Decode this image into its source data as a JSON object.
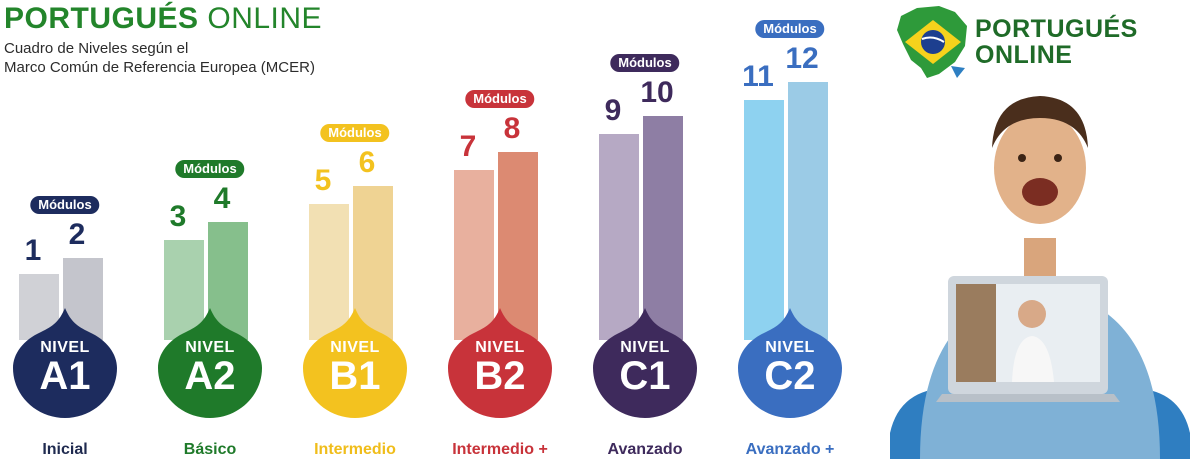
{
  "header": {
    "title_bold": "PORTUGUÉS",
    "title_light": " ONLINE",
    "subtitle_line1": "Cuadro de Niveles según el",
    "subtitle_line2": "Marco Común de Referencia Europea (MCER)"
  },
  "brand": {
    "line1": "PORTUGUÉS",
    "line2": "ONLINE",
    "logo_icon": "brazil-map-flag-icon"
  },
  "levels": [
    {
      "nivel": "NIVEL",
      "code": "A1",
      "label": "Inicial",
      "badge": "Módulos",
      "modules": [
        "1",
        "2"
      ],
      "color": "#1d2c5e",
      "bar_colors": [
        "#d0d1d6",
        "#c4c5cc"
      ],
      "label_color": "#1f2a4f"
    },
    {
      "nivel": "NIVEL",
      "code": "A2",
      "label": "Básico",
      "badge": "Módulos",
      "modules": [
        "3",
        "4"
      ],
      "color": "#1f7a2a",
      "bar_colors": [
        "#a9d1ae",
        "#86bf8c"
      ],
      "label_color": "#1f7a2a"
    },
    {
      "nivel": "NIVEL",
      "code": "B1",
      "label": "Intermedio",
      "badge": "Módulos",
      "modules": [
        "5",
        "6"
      ],
      "color": "#f3c21f",
      "bar_colors": [
        "#f2e0b3",
        "#efd393"
      ],
      "label_color": "#f0bd1a"
    },
    {
      "nivel": "NIVEL",
      "code": "B2",
      "label": "Intermedio +",
      "badge": "Módulos",
      "modules": [
        "7",
        "8"
      ],
      "color": "#c8333a",
      "bar_colors": [
        "#e8b09e",
        "#dc8a72"
      ],
      "label_color": "#c8333a"
    },
    {
      "nivel": "NIVEL",
      "code": "C1",
      "label": "Avanzado",
      "badge": "Módulos",
      "modules": [
        "9",
        "10"
      ],
      "color": "#3e2a5c",
      "bar_colors": [
        "#b6a9c4",
        "#8e7ea4"
      ],
      "label_color": "#3e2a5c"
    },
    {
      "nivel": "NIVEL",
      "code": "C2",
      "label": "Avanzado +",
      "badge": "Módulos",
      "modules": [
        "11",
        "12"
      ],
      "color": "#3a6ec0",
      "bar_colors": [
        "#8ed2f0",
        "#9bcbe6"
      ],
      "label_color": "#3a6ec0"
    }
  ]
}
